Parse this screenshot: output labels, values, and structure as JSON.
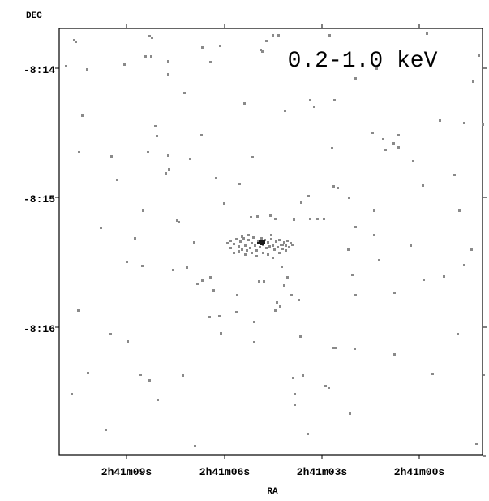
{
  "image": {
    "band_label": "0.2-1.0 keV",
    "y_axis_title": "DEC",
    "x_axis_title": "RA",
    "y_ticks": [
      {
        "label": "-8:14",
        "value_arcmin": 14
      },
      {
        "label": "-8:15",
        "value_arcmin": 15
      },
      {
        "label": "-8:16",
        "value_arcmin": 16
      }
    ],
    "x_ticks": [
      {
        "label": "2h41m09s",
        "value_s": 9
      },
      {
        "label": "2h41m06s",
        "value_s": 6
      },
      {
        "label": "2h41m03s",
        "value_s": 3
      },
      {
        "label": "2h41m00s",
        "value_s": 0
      }
    ],
    "colors": {
      "pixel": "#8a8a8a",
      "core": "#1a1a1a",
      "frame": "#000000"
    }
  }
}
